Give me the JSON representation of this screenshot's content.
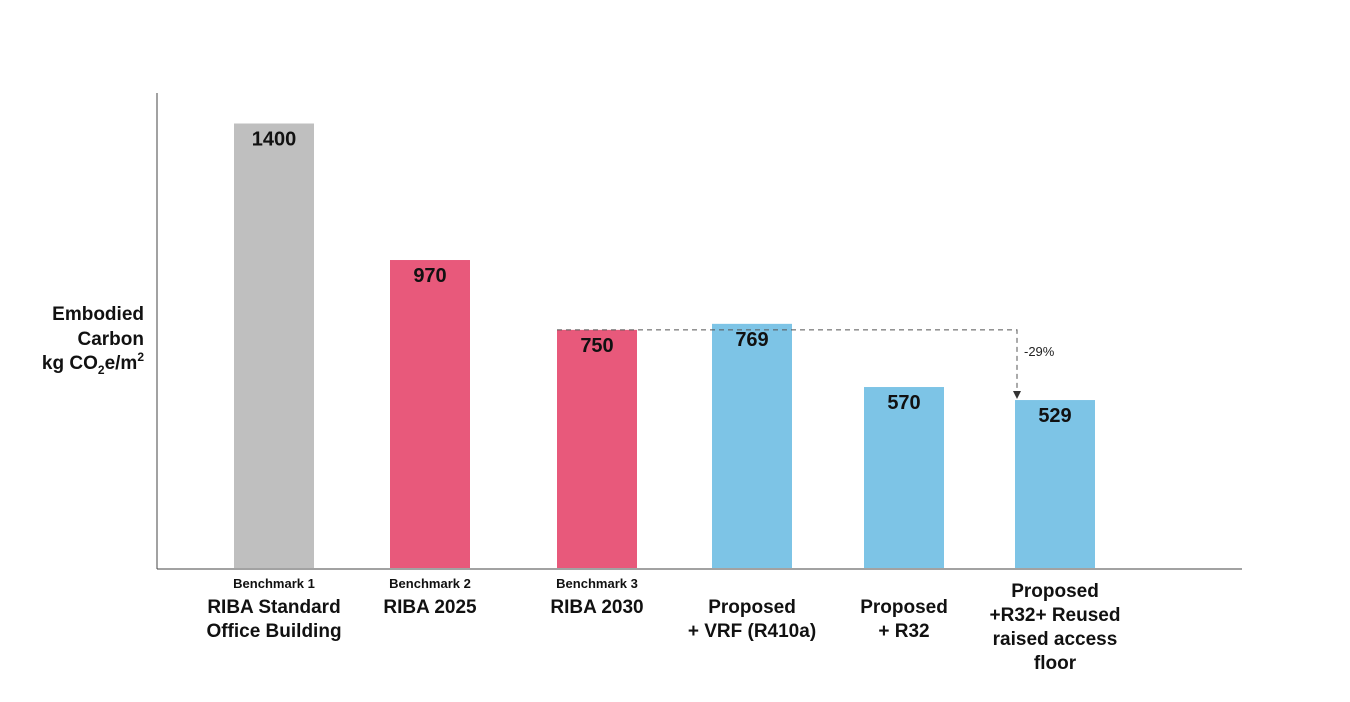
{
  "chart_data": {
    "type": "bar",
    "ylabel": {
      "line1": "Embodied",
      "line2": "Carbon",
      "line3_prefix": "kg CO",
      "line3_sub": "2",
      "line3_mid": "e/m",
      "line3_sup": "2"
    },
    "ylim": [
      0,
      1500
    ],
    "grid": false,
    "categories": [
      {
        "top_label": "Benchmark 1",
        "label_lines": [
          "RIBA Standard",
          "Office Building"
        ],
        "value": 1400,
        "color": "#bfbfbf"
      },
      {
        "top_label": "Benchmark 2",
        "label_lines": [
          "RIBA 2025"
        ],
        "value": 970,
        "color": "#e8597b"
      },
      {
        "top_label": "Benchmark 3",
        "label_lines": [
          "RIBA 2030"
        ],
        "value": 750,
        "color": "#e8597b"
      },
      {
        "top_label": "",
        "label_lines": [
          "Proposed",
          "+ VRF (R410a)"
        ],
        "value": 769,
        "color": "#7dc4e6"
      },
      {
        "top_label": "",
        "label_lines": [
          "Proposed",
          "+ R32"
        ],
        "value": 570,
        "color": "#7dc4e6"
      },
      {
        "top_label": "",
        "label_lines": [
          "Proposed",
          "+R32+ Reused",
          "raised access",
          "floor"
        ],
        "value": 529,
        "color": "#7dc4e6"
      }
    ],
    "annotation": {
      "text": "-29%",
      "from_index": 2,
      "to_index": 5
    }
  }
}
